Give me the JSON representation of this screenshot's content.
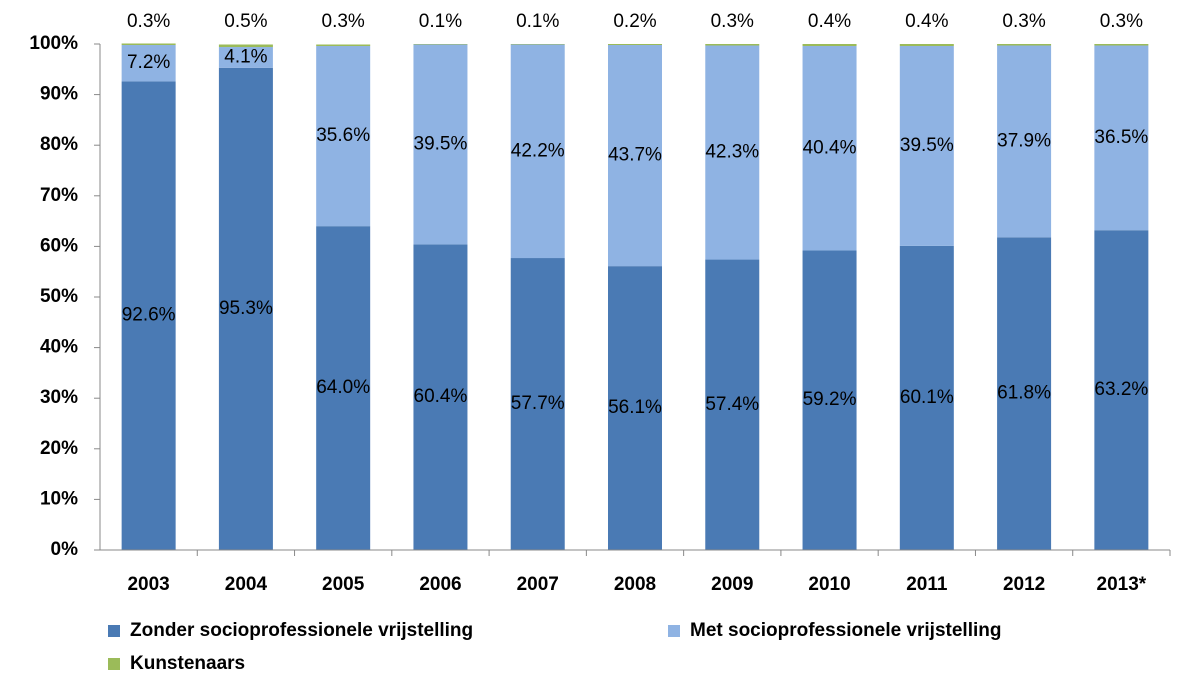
{
  "chart_data": {
    "type": "stacked_bar",
    "categories": [
      "2003",
      "2004",
      "2005",
      "2006",
      "2007",
      "2008",
      "2009",
      "2010",
      "2011",
      "2012",
      "2013*"
    ],
    "series": [
      {
        "name": "Zonder socioprofessionele vrijstelling",
        "color": "#4a7ab4",
        "values": [
          92.6,
          95.3,
          64.0,
          60.4,
          57.7,
          56.1,
          57.4,
          59.2,
          60.1,
          61.8,
          63.2
        ],
        "value_labels": [
          "92.6%",
          "95.3%",
          "64.0%",
          "60.4%",
          "57.7%",
          "56.1%",
          "57.4%",
          "59.2%",
          "60.1%",
          "61.8%",
          "63.2%"
        ]
      },
      {
        "name": "Met socioprofessionele vrijstelling",
        "color": "#8fb3e3",
        "values": [
          7.2,
          4.1,
          35.6,
          39.5,
          42.2,
          43.7,
          42.3,
          40.4,
          39.5,
          37.9,
          36.5
        ],
        "value_labels": [
          "7.2%",
          "4.1%",
          "35.6%",
          "39.5%",
          "42.2%",
          "43.7%",
          "42.3%",
          "40.4%",
          "39.5%",
          "37.9%",
          "36.5%"
        ]
      },
      {
        "name": "Kunstenaars",
        "color": "#9bbb59",
        "values": [
          0.3,
          0.5,
          0.3,
          0.1,
          0.1,
          0.2,
          0.3,
          0.4,
          0.4,
          0.3,
          0.3
        ],
        "value_labels": [
          "0.3%",
          "0.5%",
          "0.3%",
          "0.1%",
          "0.1%",
          "0.2%",
          "0.3%",
          "0.4%",
          "0.4%",
          "0.3%",
          "0.3%"
        ]
      }
    ],
    "ylim": [
      0,
      100
    ],
    "yticks": [
      {
        "value": 0,
        "label": "0%"
      },
      {
        "value": 10,
        "label": "10%"
      },
      {
        "value": 20,
        "label": "20%"
      },
      {
        "value": 30,
        "label": "30%"
      },
      {
        "value": 40,
        "label": "40%"
      },
      {
        "value": 50,
        "label": "50%"
      },
      {
        "value": 60,
        "label": "60%"
      },
      {
        "value": 70,
        "label": "70%"
      },
      {
        "value": 80,
        "label": "80%"
      },
      {
        "value": 90,
        "label": "90%"
      },
      {
        "value": 100,
        "label": "100%"
      }
    ],
    "grid": false,
    "legend": "bottom"
  }
}
